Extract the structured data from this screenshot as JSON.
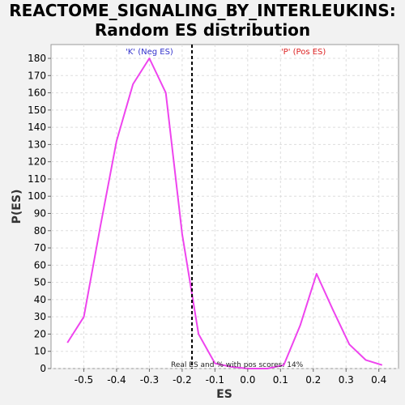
{
  "chart_data": {
    "type": "line",
    "title_lines": [
      "REACTOME_SIGNALING_BY_INTERLEUKINS:",
      "Random ES distribution"
    ],
    "xlabel": "ES",
    "ylabel": "P(ES)",
    "xlim": [
      -0.6,
      0.46
    ],
    "ylim": [
      0,
      188
    ],
    "xticks": [
      -0.5,
      -0.4,
      -0.3,
      -0.2,
      -0.1,
      0.0,
      0.1,
      0.2,
      0.3,
      0.4
    ],
    "xtick_labels": [
      "-0.5",
      "-0.4",
      "-0.3",
      "-0.2",
      "-0.1",
      "0.0",
      "0.1",
      "0.2",
      "0.3",
      "0.4"
    ],
    "yticks": [
      0,
      10,
      20,
      30,
      40,
      50,
      60,
      70,
      80,
      90,
      100,
      110,
      120,
      130,
      140,
      150,
      160,
      170,
      180
    ],
    "ytick_labels": [
      "0",
      "10",
      "20",
      "30",
      "40",
      "50",
      "60",
      "70",
      "80",
      "90",
      "100",
      "110",
      "120",
      "130",
      "140",
      "150",
      "160",
      "170",
      "180"
    ],
    "grid": true,
    "series": [
      {
        "color": "#ee44ee",
        "x": [
          -0.55,
          -0.5,
          -0.45,
          -0.4,
          -0.35,
          -0.3,
          -0.25,
          -0.2,
          -0.15,
          -0.1,
          -0.05,
          0.0,
          0.06,
          0.11,
          0.16,
          0.21,
          0.26,
          0.31,
          0.36,
          0.41
        ],
        "y": [
          15,
          30,
          82,
          132,
          165,
          180,
          160,
          78,
          20,
          3,
          1,
          0,
          0,
          2,
          25,
          55,
          34,
          14,
          5,
          2
        ]
      }
    ],
    "real_es": -0.17,
    "annotations": {
      "neg_label": "'K' (Neg ES)",
      "pos_label": "'P' (Pos ES)",
      "note": "Real ES and % with pos scores: 14%"
    },
    "colors": {
      "neg": "#3333cc",
      "pos": "#dd2222",
      "line": "#ee44ee",
      "grid": "#dddddd"
    }
  }
}
